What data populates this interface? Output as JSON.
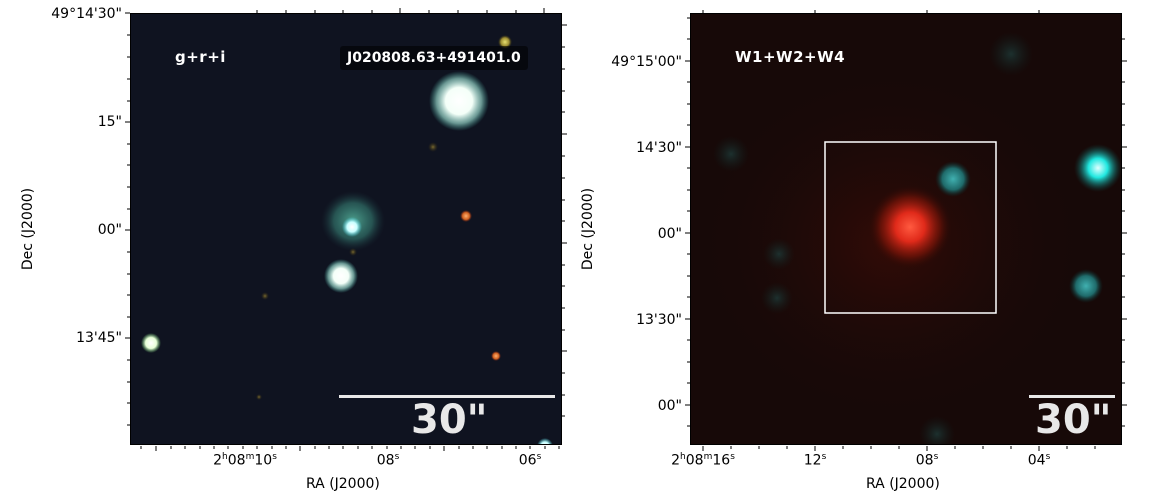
{
  "left": {
    "band_label": "g+r+i",
    "object_name": "J020808.63+491401.0",
    "scalebar_label": "30\"",
    "y_ticks": [
      "49°14'30\"",
      "15\"",
      "00\"",
      "13'45\""
    ],
    "x_tick_first": {
      "h": "2",
      "m": "08",
      "s": "10"
    },
    "x_ticks_rest": [
      "08",
      "06"
    ],
    "ylabel": "Dec (J2000)",
    "xlabel": "RA (J2000)"
  },
  "right": {
    "band_label": "W1+W2+W4",
    "scalebar_label": "30\"",
    "y_ticks": [
      "49°15'00\"",
      "14'30\"",
      "00\"",
      "13'30\"",
      "00\""
    ],
    "x_tick_first": {
      "h": "2",
      "m": "08",
      "s": "16"
    },
    "x_ticks_rest": [
      "12",
      "08",
      "04"
    ],
    "ylabel": "Dec (J2000)",
    "xlabel": "RA (J2000)"
  },
  "colors": {
    "left_bg": "#0f1320",
    "right_bg": "#170908",
    "scalebar": "#e8e8e8"
  }
}
